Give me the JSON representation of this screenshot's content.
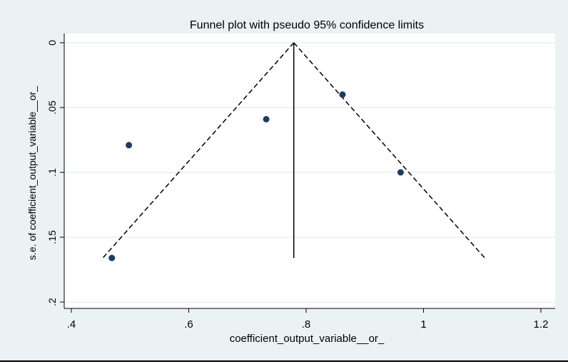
{
  "chart_data": {
    "type": "scatter",
    "title": "Funnel plot with pseudo 95% confidence limits",
    "xlabel": "coefficient_output_variable__or_",
    "ylabel": "s.e. of coefficient_output_variable__or_",
    "xlim": [
      0.4,
      1.2
    ],
    "ylim": [
      0,
      0.2
    ],
    "y_reversed": true,
    "grid": true,
    "x_ticks": [
      {
        "value": 0.4,
        "label": ".4"
      },
      {
        "value": 0.6,
        "label": ".6"
      },
      {
        "value": 0.8,
        "label": ".8"
      },
      {
        "value": 1.0,
        "label": "1"
      },
      {
        "value": 1.2,
        "label": "1.2"
      }
    ],
    "y_ticks": [
      {
        "value": 0,
        "label": "0"
      },
      {
        "value": 0.05,
        "label": ".05"
      },
      {
        "value": 0.1,
        "label": ".1"
      },
      {
        "value": 0.15,
        "label": ".15"
      },
      {
        "value": 0.2,
        "label": ".2"
      }
    ],
    "points": [
      {
        "x": 0.469,
        "y": 0.166
      },
      {
        "x": 0.498,
        "y": 0.079
      },
      {
        "x": 0.732,
        "y": 0.059
      },
      {
        "x": 0.862,
        "y": 0.04
      },
      {
        "x": 0.961,
        "y": 0.1
      }
    ],
    "pooled_estimate": 0.779,
    "se_max": 0.166,
    "ci_z": 1.96,
    "colors": {
      "background": "#eaf2f3",
      "plot_area": "#ffffff",
      "grid": "#e3ecee",
      "points": "#1a3d66",
      "lines": "#000000"
    }
  }
}
